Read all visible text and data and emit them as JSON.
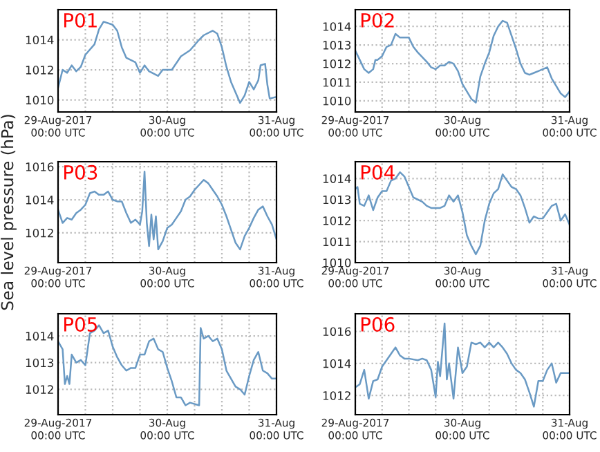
{
  "chart_data": [
    {
      "type": "line",
      "title": "P01",
      "xlim": [
        "2017-08-29T00:00",
        "2017-08-31T00:00"
      ],
      "ylim": [
        1009.2,
        1016
      ],
      "yticks": [
        1010,
        1012,
        1014
      ],
      "grid": true,
      "legend": false,
      "xticks": [
        {
          "value": "2017-08-29T00:00",
          "label": "29-Aug-2017\n00:00 UTC"
        },
        {
          "value": "2017-08-29T06:00",
          "label": null
        },
        {
          "value": "2017-08-29T12:00",
          "label": null
        },
        {
          "value": "2017-08-29T18:00",
          "label": null
        },
        {
          "value": "2017-08-30T00:00",
          "label": "30-Aug\n00:00 UTC"
        },
        {
          "value": "2017-08-30T06:00",
          "label": null
        },
        {
          "value": "2017-08-30T12:00",
          "label": null
        },
        {
          "value": "2017-08-30T18:00",
          "label": null
        },
        {
          "value": "2017-08-31T00:00",
          "label": "31-Aug\n00:00 UTC"
        }
      ],
      "series": [
        {
          "color": "#6a9ac4",
          "x": [
            "2017-08-29T00:00",
            "2017-08-29T01:00",
            "2017-08-29T02:00",
            "2017-08-29T03:00",
            "2017-08-29T04:00",
            "2017-08-29T05:00",
            "2017-08-29T06:00",
            "2017-08-29T08:00",
            "2017-08-29T09:00",
            "2017-08-29T10:00",
            "2017-08-29T12:00",
            "2017-08-29T13:00",
            "2017-08-29T14:00",
            "2017-08-29T15:00",
            "2017-08-29T17:00",
            "2017-08-29T18:00",
            "2017-08-29T19:00",
            "2017-08-29T20:00",
            "2017-08-29T22:00",
            "2017-08-29T23:00",
            "2017-08-30T01:00",
            "2017-08-30T03:00",
            "2017-08-30T05:00",
            "2017-08-30T07:00",
            "2017-08-30T08:00",
            "2017-08-30T10:00",
            "2017-08-30T11:00",
            "2017-08-30T12:00",
            "2017-08-30T13:00",
            "2017-08-30T14:00",
            "2017-08-30T16:00",
            "2017-08-30T17:00",
            "2017-08-30T18:00",
            "2017-08-30T19:00",
            "2017-08-30T20:00",
            "2017-08-30T20:30",
            "2017-08-30T21:30",
            "2017-08-30T22:00",
            "2017-08-30T22:30",
            "2017-08-31T00:00"
          ],
          "values": [
            1010.8,
            1012,
            1011.8,
            1012.3,
            1011.9,
            1012.2,
            1013,
            1013.7,
            1014.7,
            1015.2,
            1015,
            1014.6,
            1013.5,
            1012.8,
            1012.5,
            1011.8,
            1012.3,
            1011.9,
            1011.6,
            1012,
            1012,
            1012.9,
            1013.3,
            1014,
            1014.3,
            1014.6,
            1014.4,
            1013.5,
            1012.2,
            1011.2,
            1009.8,
            1010.3,
            1011.2,
            1010.7,
            1011.3,
            1012.3,
            1012.4,
            1011,
            1010.1,
            1010.2
          ]
        }
      ]
    },
    {
      "type": "line",
      "title": "P02",
      "xlim": [
        "2017-08-29T00:00",
        "2017-08-31T00:00"
      ],
      "ylim": [
        1009.4,
        1014.9
      ],
      "yticks": [
        1010,
        1011,
        1012,
        1013,
        1014
      ],
      "grid": true,
      "legend": false,
      "xticks": [
        {
          "value": "2017-08-29T00:00",
          "label": "29-Aug-2017\n00:00 UTC"
        },
        {
          "value": "2017-08-29T06:00",
          "label": null
        },
        {
          "value": "2017-08-29T12:00",
          "label": null
        },
        {
          "value": "2017-08-29T18:00",
          "label": null
        },
        {
          "value": "2017-08-30T00:00",
          "label": "30-Aug\n00:00 UTC"
        },
        {
          "value": "2017-08-30T06:00",
          "label": null
        },
        {
          "value": "2017-08-30T12:00",
          "label": null
        },
        {
          "value": "2017-08-30T18:00",
          "label": null
        },
        {
          "value": "2017-08-31T00:00",
          "label": "31-Aug\n00:00 UTC"
        }
      ],
      "series": [
        {
          "color": "#6a9ac4",
          "x": [
            "2017-08-29T00:00",
            "2017-08-29T01:00",
            "2017-08-29T02:00",
            "2017-08-29T03:00",
            "2017-08-29T04:00",
            "2017-08-29T04:30",
            "2017-08-29T05:00",
            "2017-08-29T06:00",
            "2017-08-29T07:00",
            "2017-08-29T08:00",
            "2017-08-29T09:00",
            "2017-08-29T10:00",
            "2017-08-29T12:00",
            "2017-08-29T13:00",
            "2017-08-29T14:00",
            "2017-08-29T16:00",
            "2017-08-29T17:00",
            "2017-08-29T18:00",
            "2017-08-29T19:00",
            "2017-08-29T20:00",
            "2017-08-29T21:00",
            "2017-08-29T22:00",
            "2017-08-29T23:00",
            "2017-08-30T00:00",
            "2017-08-30T01:00",
            "2017-08-30T02:00",
            "2017-08-30T03:00",
            "2017-08-30T04:00",
            "2017-08-30T05:00",
            "2017-08-30T06:00",
            "2017-08-30T07:00",
            "2017-08-30T08:00",
            "2017-08-30T09:00",
            "2017-08-30T10:00",
            "2017-08-30T11:00",
            "2017-08-30T12:00",
            "2017-08-30T13:00",
            "2017-08-30T14:00",
            "2017-08-30T15:00",
            "2017-08-30T16:00",
            "2017-08-30T17:00",
            "2017-08-30T18:00",
            "2017-08-30T19:00",
            "2017-08-30T20:00",
            "2017-08-30T21:00",
            "2017-08-30T22:00",
            "2017-08-30T23:00",
            "2017-08-31T00:00"
          ],
          "values": [
            1012.7,
            1012.2,
            1011.7,
            1011.5,
            1011.7,
            1012.2,
            1012.2,
            1012.4,
            1012.9,
            1013,
            1013.6,
            1013.4,
            1013.4,
            1012.9,
            1012.6,
            1012.1,
            1011.8,
            1011.7,
            1011.9,
            1011.9,
            1012.1,
            1012,
            1011.6,
            1010.9,
            1010.5,
            1010.1,
            1009.9,
            1011.3,
            1012,
            1012.6,
            1013.5,
            1014,
            1014.3,
            1014.2,
            1013.5,
            1012.8,
            1012,
            1011.5,
            1011.4,
            1011.5,
            1011.6,
            1011.7,
            1011.8,
            1011.2,
            1010.8,
            1010.4,
            1010.2,
            1010.5
          ]
        }
      ]
    },
    {
      "type": "line",
      "title": "P03",
      "ylabel": "Sea level pressure (hPa)",
      "xlim": [
        "2017-08-29T00:00",
        "2017-08-31T00:00"
      ],
      "ylim": [
        1010.2,
        1016.3
      ],
      "yticks": [
        1012,
        1014,
        1016
      ],
      "grid": true,
      "legend": false,
      "xticks": [
        {
          "value": "2017-08-29T00:00",
          "label": "29-Aug-2017\n00:00 UTC"
        },
        {
          "value": "2017-08-29T06:00",
          "label": null
        },
        {
          "value": "2017-08-29T12:00",
          "label": null
        },
        {
          "value": "2017-08-29T18:00",
          "label": null
        },
        {
          "value": "2017-08-30T00:00",
          "label": "30-Aug\n00:00 UTC"
        },
        {
          "value": "2017-08-30T06:00",
          "label": null
        },
        {
          "value": "2017-08-30T12:00",
          "label": null
        },
        {
          "value": "2017-08-30T18:00",
          "label": null
        },
        {
          "value": "2017-08-31T00:00",
          "label": "31-Aug\n00:00 UTC"
        }
      ],
      "series": [
        {
          "color": "#6a9ac4",
          "x": [
            "2017-08-29T00:00",
            "2017-08-29T01:00",
            "2017-08-29T02:00",
            "2017-08-29T03:00",
            "2017-08-29T04:00",
            "2017-08-29T05:00",
            "2017-08-29T06:00",
            "2017-08-29T07:00",
            "2017-08-29T08:00",
            "2017-08-29T09:00",
            "2017-08-29T10:00",
            "2017-08-29T11:00",
            "2017-08-29T12:00",
            "2017-08-29T13:00",
            "2017-08-29T14:00",
            "2017-08-29T15:00",
            "2017-08-29T16:00",
            "2017-08-29T17:00",
            "2017-08-29T18:00",
            "2017-08-29T18:30",
            "2017-08-29T19:00",
            "2017-08-29T19:30",
            "2017-08-29T20:00",
            "2017-08-29T20:30",
            "2017-08-29T21:00",
            "2017-08-29T21:30",
            "2017-08-29T22:00",
            "2017-08-29T23:00",
            "2017-08-30T00:00",
            "2017-08-30T01:00",
            "2017-08-30T02:00",
            "2017-08-30T03:00",
            "2017-08-30T04:00",
            "2017-08-30T05:00",
            "2017-08-30T06:00",
            "2017-08-30T07:00",
            "2017-08-30T08:00",
            "2017-08-30T09:00",
            "2017-08-30T10:00",
            "2017-08-30T11:00",
            "2017-08-30T12:00",
            "2017-08-30T13:00",
            "2017-08-30T14:00",
            "2017-08-30T15:00",
            "2017-08-30T16:00",
            "2017-08-30T17:00",
            "2017-08-30T18:00",
            "2017-08-30T19:00",
            "2017-08-30T20:00",
            "2017-08-30T21:00",
            "2017-08-30T22:00",
            "2017-08-30T23:00",
            "2017-08-31T00:00"
          ],
          "values": [
            1013.4,
            1012.6,
            1012.9,
            1012.8,
            1013.2,
            1013.4,
            1013.7,
            1014.4,
            1014.5,
            1014.3,
            1014.3,
            1014.5,
            1014,
            1013.9,
            1013.9,
            1013.2,
            1012.6,
            1012.8,
            1012.5,
            1013.3,
            1015.7,
            1012.6,
            1011.2,
            1013.1,
            1011.6,
            1013,
            1011,
            1011.5,
            1012.3,
            1012.5,
            1012.9,
            1013.3,
            1014,
            1014.2,
            1014.6,
            1014.9,
            1015.2,
            1015,
            1014.6,
            1014.2,
            1013.7,
            1013,
            1012.2,
            1011.4,
            1011,
            1011.8,
            1012.3,
            1012.9,
            1013.4,
            1013.6,
            1013,
            1012.5,
            1011.6
          ]
        }
      ]
    },
    {
      "type": "line",
      "title": "P04",
      "xlim": [
        "2017-08-29T00:00",
        "2017-08-31T00:00"
      ],
      "ylim": [
        1010,
        1014.8
      ],
      "yticks": [
        1010,
        1011,
        1012,
        1013,
        1014
      ],
      "grid": true,
      "legend": false,
      "xticks": [
        {
          "value": "2017-08-29T00:00",
          "label": "29-Aug-2017\n00:00 UTC"
        },
        {
          "value": "2017-08-29T06:00",
          "label": null
        },
        {
          "value": "2017-08-29T12:00",
          "label": null
        },
        {
          "value": "2017-08-29T18:00",
          "label": null
        },
        {
          "value": "2017-08-30T00:00",
          "label": "30-Aug\n00:00 UTC"
        },
        {
          "value": "2017-08-30T06:00",
          "label": null
        },
        {
          "value": "2017-08-30T12:00",
          "label": null
        },
        {
          "value": "2017-08-30T18:00",
          "label": null
        },
        {
          "value": "2017-08-31T00:00",
          "label": "31-Aug\n00:00 UTC"
        }
      ],
      "series": [
        {
          "color": "#6a9ac4",
          "x": [
            "2017-08-29T00:00",
            "2017-08-29T00:30",
            "2017-08-29T01:00",
            "2017-08-29T02:00",
            "2017-08-29T03:00",
            "2017-08-29T04:00",
            "2017-08-29T05:00",
            "2017-08-29T06:00",
            "2017-08-29T07:00",
            "2017-08-29T08:00",
            "2017-08-29T09:00",
            "2017-08-29T10:00",
            "2017-08-29T11:00",
            "2017-08-29T12:00",
            "2017-08-29T13:00",
            "2017-08-29T14:00",
            "2017-08-29T15:00",
            "2017-08-29T16:00",
            "2017-08-29T17:00",
            "2017-08-29T19:00",
            "2017-08-29T20:00",
            "2017-08-29T21:00",
            "2017-08-29T22:00",
            "2017-08-29T23:00",
            "2017-08-30T00:00",
            "2017-08-30T01:00",
            "2017-08-30T02:00",
            "2017-08-30T03:00",
            "2017-08-30T04:00",
            "2017-08-30T05:00",
            "2017-08-30T06:00",
            "2017-08-30T07:00",
            "2017-08-30T08:00",
            "2017-08-30T09:00",
            "2017-08-30T10:00",
            "2017-08-30T11:00",
            "2017-08-30T12:00",
            "2017-08-30T13:00",
            "2017-08-30T14:00",
            "2017-08-30T15:00",
            "2017-08-30T16:00",
            "2017-08-30T17:00",
            "2017-08-30T18:00",
            "2017-08-30T19:00",
            "2017-08-30T20:00",
            "2017-08-30T21:00",
            "2017-08-30T22:00",
            "2017-08-30T23:00",
            "2017-08-31T00:00"
          ],
          "values": [
            1013.5,
            1013.6,
            1012.8,
            1012.7,
            1013.2,
            1012.5,
            1013.1,
            1013.4,
            1013.4,
            1013.9,
            1014,
            1014.3,
            1014.1,
            1013.6,
            1013.1,
            1013,
            1012.9,
            1012.7,
            1012.6,
            1012.6,
            1012.7,
            1013.2,
            1012.9,
            1013.2,
            1012.4,
            1011.3,
            1010.8,
            1010.4,
            1010.8,
            1012,
            1012.8,
            1013.3,
            1013.5,
            1014.2,
            1013.9,
            1013.6,
            1013.5,
            1013.2,
            1012.6,
            1011.9,
            1012.2,
            1012.1,
            1012.1,
            1012.4,
            1012.7,
            1012.8,
            1012,
            1012.3,
            1011.8
          ]
        }
      ]
    },
    {
      "type": "line",
      "title": "P05",
      "xlim": [
        "2017-08-29T00:00",
        "2017-08-31T00:00"
      ],
      "ylim": [
        1011.05,
        1014.83
      ],
      "yticks": [
        1012,
        1013,
        1014
      ],
      "grid": true,
      "legend": false,
      "xticks": [
        {
          "value": "2017-08-29T00:00",
          "label": "29-Aug-2017\n00:00 UTC"
        },
        {
          "value": "2017-08-29T06:00",
          "label": null
        },
        {
          "value": "2017-08-29T12:00",
          "label": null
        },
        {
          "value": "2017-08-29T18:00",
          "label": null
        },
        {
          "value": "2017-08-30T00:00",
          "label": "30-Aug\n00:00 UTC"
        },
        {
          "value": "2017-08-30T06:00",
          "label": null
        },
        {
          "value": "2017-08-30T12:00",
          "label": null
        },
        {
          "value": "2017-08-30T18:00",
          "label": null
        },
        {
          "value": "2017-08-31T00:00",
          "label": "31-Aug\n00:00 UTC"
        }
      ],
      "series": [
        {
          "color": "#6a9ac4",
          "x": [
            "2017-08-29T00:00",
            "2017-08-29T01:00",
            "2017-08-29T01:30",
            "2017-08-29T02:00",
            "2017-08-29T02:30",
            "2017-08-29T03:00",
            "2017-08-29T04:00",
            "2017-08-29T05:00",
            "2017-08-29T06:00",
            "2017-08-29T07:00",
            "2017-08-29T08:00",
            "2017-08-29T09:00",
            "2017-08-29T10:00",
            "2017-08-29T11:00",
            "2017-08-29T12:00",
            "2017-08-29T13:00",
            "2017-08-29T14:00",
            "2017-08-29T15:00",
            "2017-08-29T16:00",
            "2017-08-29T17:00",
            "2017-08-29T18:00",
            "2017-08-29T19:00",
            "2017-08-29T20:00",
            "2017-08-29T21:00",
            "2017-08-29T22:00",
            "2017-08-29T23:00",
            "2017-08-30T00:00",
            "2017-08-30T01:00",
            "2017-08-30T02:00",
            "2017-08-30T03:00",
            "2017-08-30T04:00",
            "2017-08-30T05:00",
            "2017-08-30T07:00",
            "2017-08-30T07:20",
            "2017-08-30T08:00",
            "2017-08-30T09:00",
            "2017-08-30T10:00",
            "2017-08-30T11:00",
            "2017-08-30T12:00",
            "2017-08-30T13:00",
            "2017-08-30T14:00",
            "2017-08-30T15:00",
            "2017-08-30T16:00",
            "2017-08-30T17:00",
            "2017-08-30T18:00",
            "2017-08-30T19:00",
            "2017-08-30T20:00",
            "2017-08-30T21:00",
            "2017-08-30T22:00",
            "2017-08-30T23:00",
            "2017-08-31T00:00"
          ],
          "values": [
            1013.8,
            1013.5,
            1012.2,
            1012.5,
            1012.2,
            1013.3,
            1013,
            1013.1,
            1012.9,
            1014.1,
            1014.2,
            1014.4,
            1014.1,
            1014.2,
            1013.6,
            1013.2,
            1012.9,
            1012.7,
            1012.8,
            1012.8,
            1013.3,
            1013.3,
            1013.8,
            1013.9,
            1013.5,
            1013.4,
            1012.8,
            1012.3,
            1011.7,
            1011.7,
            1011.4,
            1011.5,
            1011.4,
            1014.3,
            1013.9,
            1014,
            1013.8,
            1013.9,
            1013.5,
            1012.7,
            1012.4,
            1012.1,
            1012,
            1011.8,
            1012.5,
            1013.1,
            1013.4,
            1012.7,
            1012.6,
            1012.4,
            1012.4
          ]
        }
      ]
    },
    {
      "type": "line",
      "title": "P06",
      "xlim": [
        "2017-08-29T00:00",
        "2017-08-31T00:00"
      ],
      "ylim": [
        1010.8,
        1017.1
      ],
      "yticks": [
        1012,
        1014,
        1016
      ],
      "grid": true,
      "legend": false,
      "xticks": [
        {
          "value": "2017-08-29T00:00",
          "label": "29-Aug-2017\n00:00 UTC"
        },
        {
          "value": "2017-08-29T06:00",
          "label": null
        },
        {
          "value": "2017-08-29T12:00",
          "label": null
        },
        {
          "value": "2017-08-29T18:00",
          "label": null
        },
        {
          "value": "2017-08-30T00:00",
          "label": "30-Aug\n00:00 UTC"
        },
        {
          "value": "2017-08-30T06:00",
          "label": null
        },
        {
          "value": "2017-08-30T12:00",
          "label": null
        },
        {
          "value": "2017-08-30T18:00",
          "label": null
        },
        {
          "value": "2017-08-31T00:00",
          "label": "31-Aug\n00:00 UTC"
        }
      ],
      "series": [
        {
          "color": "#6a9ac4",
          "x": [
            "2017-08-29T00:00",
            "2017-08-29T01:00",
            "2017-08-29T02:00",
            "2017-08-29T03:00",
            "2017-08-29T04:00",
            "2017-08-29T05:00",
            "2017-08-29T06:00",
            "2017-08-29T07:00",
            "2017-08-29T08:00",
            "2017-08-29T09:00",
            "2017-08-29T10:00",
            "2017-08-29T11:00",
            "2017-08-29T12:00",
            "2017-08-29T14:00",
            "2017-08-29T15:00",
            "2017-08-29T16:00",
            "2017-08-29T17:00",
            "2017-08-29T18:00",
            "2017-08-29T18:30",
            "2017-08-29T19:00",
            "2017-08-29T20:00",
            "2017-08-29T20:30",
            "2017-08-29T21:00",
            "2017-08-29T22:00",
            "2017-08-29T23:00",
            "2017-08-30T00:00",
            "2017-08-30T01:00",
            "2017-08-30T02:00",
            "2017-08-30T03:00",
            "2017-08-30T04:00",
            "2017-08-30T05:00",
            "2017-08-30T06:00",
            "2017-08-30T07:00",
            "2017-08-30T08:00",
            "2017-08-30T09:00",
            "2017-08-30T10:00",
            "2017-08-30T11:00",
            "2017-08-30T12:00",
            "2017-08-30T13:00",
            "2017-08-30T14:00",
            "2017-08-30T15:00",
            "2017-08-30T16:00",
            "2017-08-30T17:00",
            "2017-08-30T18:00",
            "2017-08-30T19:00",
            "2017-08-30T20:00",
            "2017-08-30T21:00",
            "2017-08-30T22:00",
            "2017-08-30T23:00",
            "2017-08-31T00:00"
          ],
          "values": [
            1012.5,
            1012.7,
            1013.6,
            1011.8,
            1012.9,
            1013,
            1013.8,
            1014.2,
            1014.6,
            1015,
            1014.5,
            1014.3,
            1014.3,
            1014.2,
            1014.3,
            1014.2,
            1013.6,
            1011.9,
            1014.1,
            1013.2,
            1016.5,
            1013,
            1014,
            1011.8,
            1015,
            1013.4,
            1013.8,
            1015.3,
            1015.2,
            1015.3,
            1015,
            1015.3,
            1015,
            1015.3,
            1015,
            1014.6,
            1014,
            1013.6,
            1013.4,
            1013,
            1012.2,
            1011.3,
            1012.9,
            1012.9,
            1013.6,
            1014,
            1012.8,
            1013.4,
            1013.4,
            1013.4
          ]
        }
      ]
    }
  ]
}
